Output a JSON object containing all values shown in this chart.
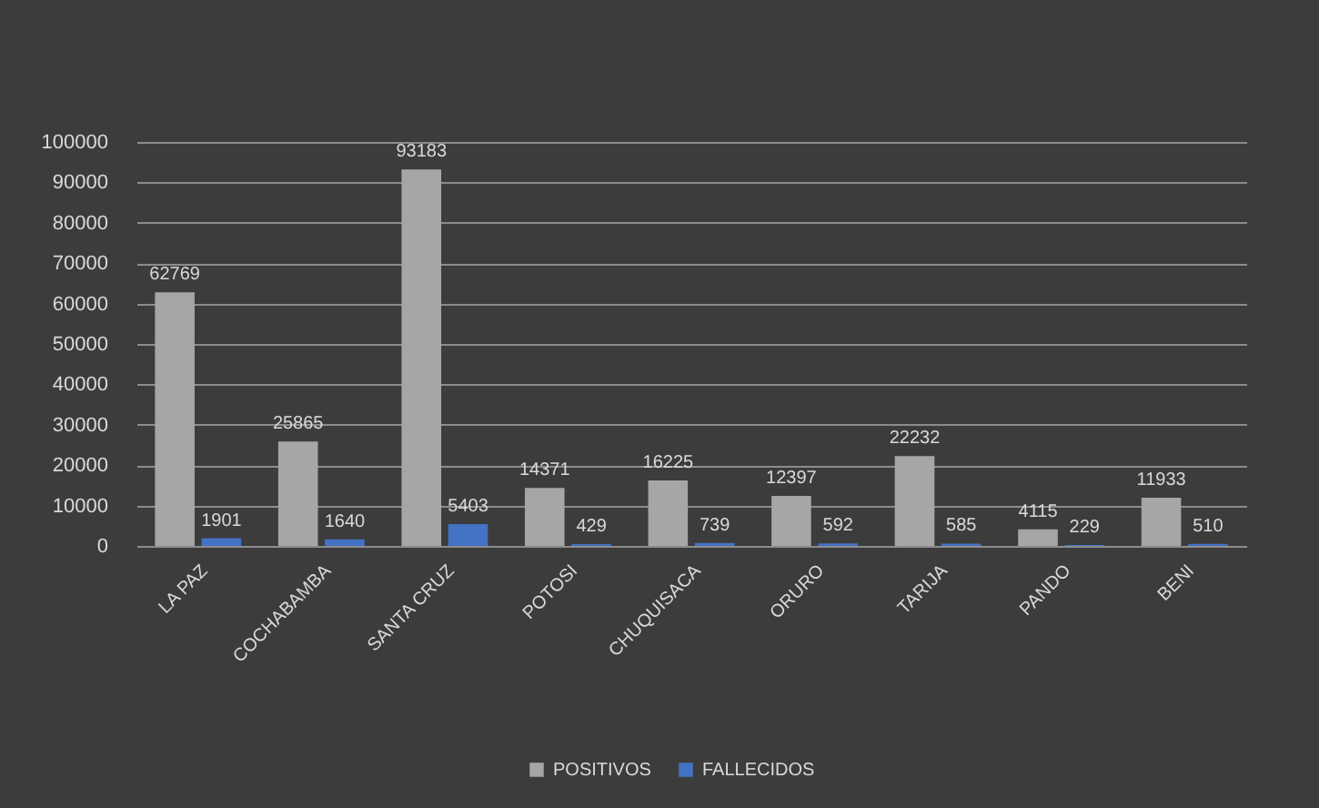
{
  "chart_data": {
    "type": "bar",
    "categories": [
      "LA PAZ",
      "COCHABAMBA",
      "SANTA CRUZ",
      "POTOSI",
      "CHUQUISACA",
      "ORURO",
      "TARIJA",
      "PANDO",
      "BENI"
    ],
    "series": [
      {
        "name": "POSITIVOS",
        "color": "#a6a6a6",
        "values": [
          62769,
          25865,
          93183,
          14371,
          16225,
          12397,
          22232,
          4115,
          11933
        ]
      },
      {
        "name": "FALLECIDOS",
        "color": "#4472c4",
        "values": [
          1901,
          1640,
          5403,
          429,
          739,
          592,
          585,
          229,
          510
        ]
      }
    ],
    "ylim": [
      0,
      100000
    ],
    "yticks": [
      0,
      10000,
      20000,
      30000,
      40000,
      50000,
      60000,
      70000,
      80000,
      90000,
      100000
    ],
    "grid": "y",
    "legend": "bottom",
    "data_labels": true
  }
}
